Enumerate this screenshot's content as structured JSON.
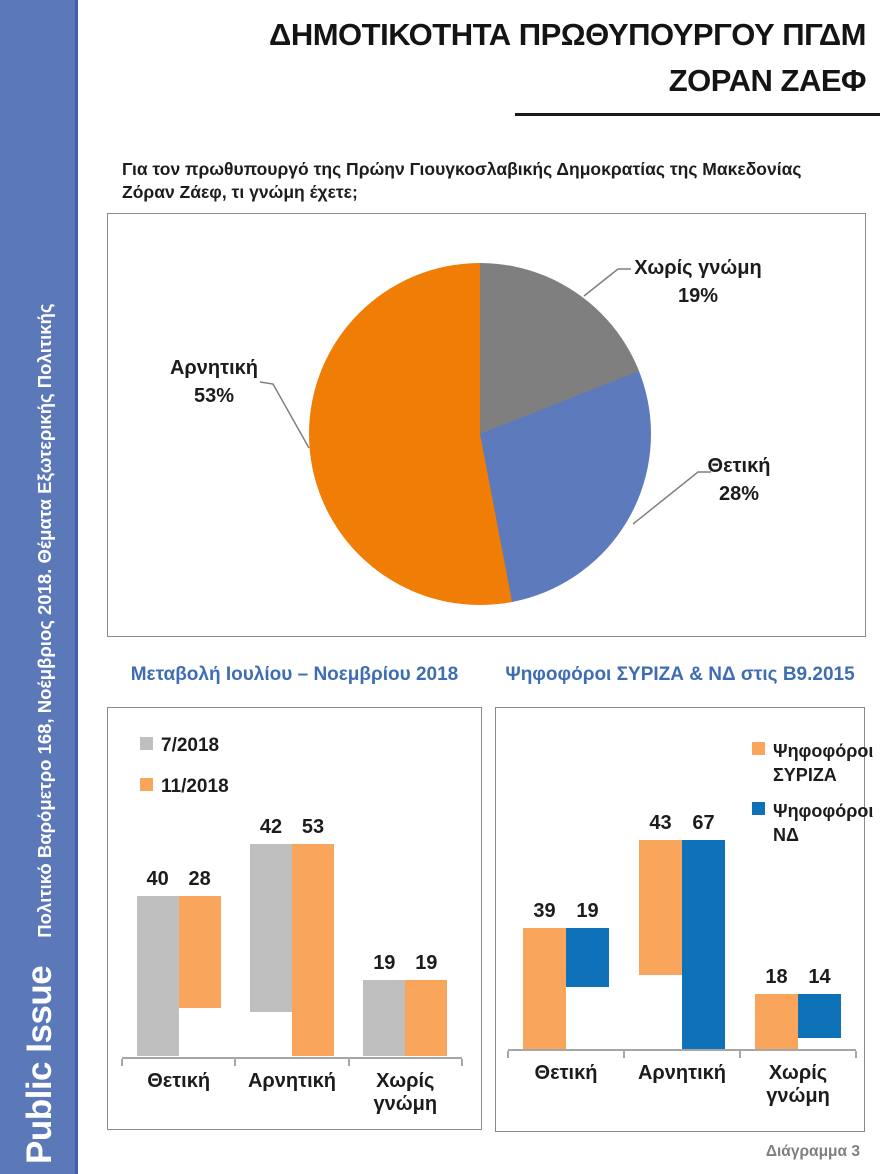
{
  "sidebar": {
    "brand": "Public Issue",
    "subtitle": "Πολιτικό Βαρόμετρο 168, Νοέμβριος 2018. Θέματα Εξωτερικής Πολιτικής",
    "background": "#5b78b8"
  },
  "header": {
    "title_line1": "ΔΗΜΟΤΙΚΟΤΗΤΑ ΠΡΩΘΥΠΟΥΡΓΟΥ ΠΓΔΜ",
    "title_line2": "ΖΟΡΑΝ ΖΑΕΦ"
  },
  "question": "Για τον πρωθυπουργό της Πρώην Γιουγκοσλαβικής Δημοκρατίας της Μακεδονίας Ζόραν Ζάεφ, τι γνώμη έχετε;",
  "footer": {
    "caption": "Διάγραμμα 3"
  },
  "colors": {
    "sidebar_blue": "#5b78b8",
    "heading_blue": "#3f6db4",
    "pie_orange": "#f07d05",
    "pie_blue": "#5c7abc",
    "pie_gray": "#7f7f7f",
    "bar_light_gray": "#bfbfbf",
    "bar_light_orange": "#f9a65c",
    "bar_strong_blue": "#0f71b8",
    "caption_gray": "#7f7f7f"
  },
  "chart_data": [
    {
      "type": "pie",
      "title": "",
      "labels": [
        "Χωρίς γνώμη",
        "Θετική",
        "Αρνητική"
      ],
      "values": [
        19,
        28,
        53
      ],
      "value_labels": [
        "19%",
        "28%",
        "53%"
      ],
      "colors": [
        "#7f7f7f",
        "#5c7abc",
        "#f07d05"
      ],
      "start_angle_deg": 0,
      "direction": "clockwise",
      "legend_position": "none"
    },
    {
      "type": "bar",
      "title": "Μεταβολή Ιουλίου – Νοεμβρίου 2018",
      "categories": [
        "Θετική",
        "Αρνητική",
        "Χωρίς γνώμη"
      ],
      "series": [
        {
          "name": "7/2018",
          "color": "#bfbfbf",
          "values": [
            40,
            42,
            19
          ]
        },
        {
          "name": "11/2018",
          "color": "#f9a65c",
          "values": [
            28,
            53,
            19
          ]
        }
      ],
      "data_labels": true,
      "ylim": [
        0,
        60
      ],
      "grid": false,
      "legend_position": "top-left"
    },
    {
      "type": "bar",
      "title": "Ψηφοφόροι ΣΥΡΙΖΑ & ΝΔ στις Β9.2015",
      "categories": [
        "Θετική",
        "Αρνητική",
        "Χωρίς γνώμη"
      ],
      "series": [
        {
          "name": "Ψηφοφόροι ΣΥΡΙΖΑ",
          "color": "#f9a65c",
          "values": [
            39,
            43,
            18
          ]
        },
        {
          "name": "Ψηφοφόροι ΝΔ",
          "color": "#0f71b8",
          "values": [
            19,
            67,
            14
          ]
        }
      ],
      "data_labels": true,
      "ylim": [
        0,
        75
      ],
      "grid": false,
      "legend_position": "top-right"
    }
  ]
}
